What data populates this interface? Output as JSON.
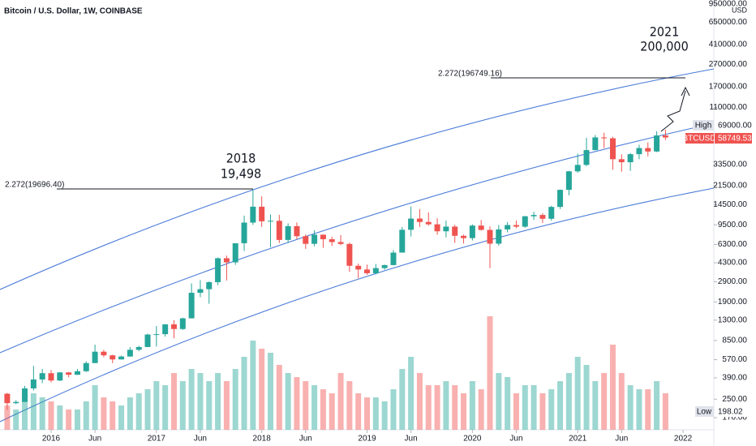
{
  "chart_data": {
    "type": "candlestick",
    "title": "Bitcoin / U.S. Dollar, 1W, COINBASE",
    "currency": "USD",
    "log_scale": true,
    "up_color": "#26a69a",
    "down_color": "#ef5350",
    "categories": [
      "2015-08",
      "2015-09",
      "2015-10",
      "2015-11",
      "2015-12",
      "2016-01",
      "2016-02",
      "2016-03",
      "2016-04",
      "2016-05",
      "2016-06",
      "2016-07",
      "2016-08",
      "2016-09",
      "2016-10",
      "2016-11",
      "2016-12",
      "2017-01",
      "2017-02",
      "2017-03",
      "2017-04",
      "2017-05",
      "2017-06",
      "2017-07",
      "2017-08",
      "2017-09",
      "2017-10",
      "2017-11",
      "2017-12",
      "2018-01",
      "2018-02",
      "2018-03",
      "2018-04",
      "2018-05",
      "2018-06",
      "2018-07",
      "2018-08",
      "2018-09",
      "2018-10",
      "2018-11",
      "2018-12",
      "2019-01",
      "2019-02",
      "2019-03",
      "2019-04",
      "2019-05",
      "2019-06",
      "2019-07",
      "2019-08",
      "2019-09",
      "2019-10",
      "2019-11",
      "2019-12",
      "2020-01",
      "2020-02",
      "2020-03",
      "2020-04",
      "2020-05",
      "2020-06",
      "2020-07",
      "2020-08",
      "2020-09",
      "2020-10",
      "2020-11",
      "2020-12",
      "2021-01",
      "2021-02",
      "2021-03",
      "2021-04",
      "2021-05",
      "2021-06",
      "2021-07",
      "2021-08",
      "2021-09",
      "2021-10",
      "2021-11"
    ],
    "open": [
      280,
      230,
      236,
      313,
      377,
      430,
      369,
      437,
      416,
      448,
      531,
      673,
      624,
      573,
      609,
      700,
      742,
      963,
      970,
      1190,
      1080,
      1350,
      2300,
      2480,
      2870,
      4730,
      4340,
      6470,
      9950,
      13860,
      10220,
      10330,
      6930,
      9240,
      7490,
      6390,
      7730,
      7030,
      6630,
      6370,
      4040,
      3740,
      3460,
      3850,
      4100,
      5320,
      8560,
      10820,
      10080,
      9600,
      8300,
      9150,
      7550,
      7200,
      9350,
      8540,
      6410,
      8630,
      9450,
      9140,
      11350,
      11660,
      10780,
      13800,
      19700,
      28990,
      33140,
      45140,
      58800,
      57750,
      37330,
      35040,
      41460,
      47100,
      43830,
      61300
    ],
    "high": [
      285,
      245,
      330,
      500,
      470,
      460,
      440,
      440,
      470,
      550,
      780,
      700,
      630,
      620,
      740,
      760,
      980,
      1150,
      1200,
      1300,
      1370,
      2800,
      3000,
      2920,
      4800,
      5000,
      6470,
      11500,
      19800,
      17200,
      11780,
      11700,
      9800,
      9990,
      7770,
      8500,
      7750,
      7410,
      7680,
      6550,
      4230,
      4140,
      4200,
      4140,
      5620,
      9100,
      13880,
      13200,
      12320,
      10900,
      10370,
      9500,
      7750,
      9580,
      10500,
      9200,
      9460,
      10060,
      10390,
      11440,
      12470,
      12080,
      14100,
      19860,
      29300,
      41950,
      58350,
      61780,
      64850,
      59590,
      41330,
      42450,
      50500,
      52950,
      66970,
      69000
    ],
    "low": [
      200,
      225,
      236,
      300,
      350,
      355,
      365,
      395,
      415,
      440,
      530,
      600,
      530,
      570,
      605,
      680,
      740,
      750,
      920,
      890,
      1060,
      1350,
      2100,
      1830,
      2700,
      2970,
      4120,
      5500,
      9500,
      9100,
      5950,
      6500,
      6500,
      7000,
      5750,
      6070,
      5880,
      6100,
      6200,
      3560,
      3120,
      3350,
      3380,
      3730,
      4080,
      5320,
      7450,
      9070,
      9320,
      7710,
      7300,
      6520,
      6430,
      6850,
      8450,
      3850,
      6150,
      8120,
      8830,
      8890,
      10530,
      9850,
      10370,
      13200,
      17570,
      28130,
      32300,
      44950,
      47050,
      30000,
      28800,
      29280,
      37330,
      39600,
      43300,
      55600
    ],
    "close": [
      230,
      236,
      313,
      377,
      430,
      369,
      437,
      416,
      448,
      531,
      673,
      624,
      573,
      609,
      700,
      742,
      963,
      970,
      1190,
      1080,
      1350,
      2300,
      2480,
      2870,
      4730,
      4340,
      6470,
      9950,
      13860,
      10220,
      10330,
      6930,
      9240,
      7490,
      6390,
      7730,
      7030,
      6630,
      6370,
      4040,
      3740,
      3460,
      3850,
      4100,
      5320,
      8560,
      10820,
      10080,
      9600,
      8300,
      9150,
      7550,
      7200,
      9350,
      8540,
      6410,
      8630,
      9450,
      9140,
      11350,
      11660,
      10780,
      13800,
      19700,
      28990,
      33140,
      45140,
      58800,
      57750,
      37330,
      35040,
      41460,
      47100,
      43830,
      61300,
      58749.53
    ],
    "volume": [
      30,
      25,
      35,
      45,
      40,
      35,
      30,
      25,
      25,
      35,
      55,
      40,
      35,
      30,
      40,
      45,
      50,
      60,
      55,
      70,
      60,
      75,
      70,
      60,
      70,
      60,
      75,
      90,
      110,
      100,
      95,
      80,
      70,
      65,
      60,
      55,
      50,
      45,
      70,
      60,
      45,
      40,
      40,
      35,
      50,
      75,
      90,
      70,
      55,
      55,
      60,
      55,
      45,
      60,
      50,
      140,
      70,
      65,
      45,
      55,
      55,
      45,
      50,
      60,
      70,
      90,
      80,
      60,
      70,
      105,
      70,
      55,
      50,
      50,
      60,
      45
    ],
    "ylim": [
      132,
      1034000
    ],
    "yticks": [
      {
        "value": 950000,
        "label": "950000.00"
      },
      {
        "value": 650000,
        "label": "650000.00"
      },
      {
        "value": 410000,
        "label": "410000.00"
      },
      {
        "value": 270000,
        "label": "270000.00"
      },
      {
        "value": 170000,
        "label": "170000.00"
      },
      {
        "value": 110000,
        "label": "110000.00"
      },
      {
        "value": 33500,
        "label": "33500.00"
      },
      {
        "value": 21500,
        "label": "21500.00"
      },
      {
        "value": 14500,
        "label": "14500.00"
      },
      {
        "value": 9500,
        "label": "9500.00"
      },
      {
        "value": 6300,
        "label": "6300.00"
      },
      {
        "value": 4300,
        "label": "4300.00"
      },
      {
        "value": 2900,
        "label": "2900.00"
      },
      {
        "value": 1900,
        "label": "1900.00"
      },
      {
        "value": 1300,
        "label": "1300.00"
      },
      {
        "value": 850,
        "label": "850.00"
      },
      {
        "value": 570,
        "label": "570.00"
      },
      {
        "value": 390,
        "label": "390.00"
      },
      {
        "value": 250,
        "label": "250.00"
      },
      {
        "value": 170,
        "label": "170.00"
      }
    ],
    "xticks": [
      {
        "value": "2016-01",
        "label": "2016"
      },
      {
        "value": "2016-06",
        "label": "Jun"
      },
      {
        "value": "2017-01",
        "label": "2017"
      },
      {
        "value": "2017-06",
        "label": "Jun"
      },
      {
        "value": "2018-01",
        "label": "2018"
      },
      {
        "value": "2018-06",
        "label": "Jun"
      },
      {
        "value": "2019-01",
        "label": "2019"
      },
      {
        "value": "2019-06",
        "label": "Jun"
      },
      {
        "value": "2020-01",
        "label": "2020"
      },
      {
        "value": "2020-06",
        "label": "Jun"
      },
      {
        "value": "2021-01",
        "label": "2021"
      },
      {
        "value": "2021-06",
        "label": "Jun"
      },
      {
        "value": "2022-01",
        "label": "2022"
      }
    ],
    "high_label": "High",
    "high_value": "69000.00",
    "symbol_label": "BTCUSD",
    "last_value": "58749.53",
    "low_label": "Low",
    "low_value": "198.02",
    "annotations": {
      "fib_2018": "2.272(19696.40)",
      "fib_2021": "2.272(196749.16)",
      "year_2018": "2018",
      "price_2018": "19,498",
      "year_2021": "2021",
      "price_2021": "200,000"
    }
  }
}
